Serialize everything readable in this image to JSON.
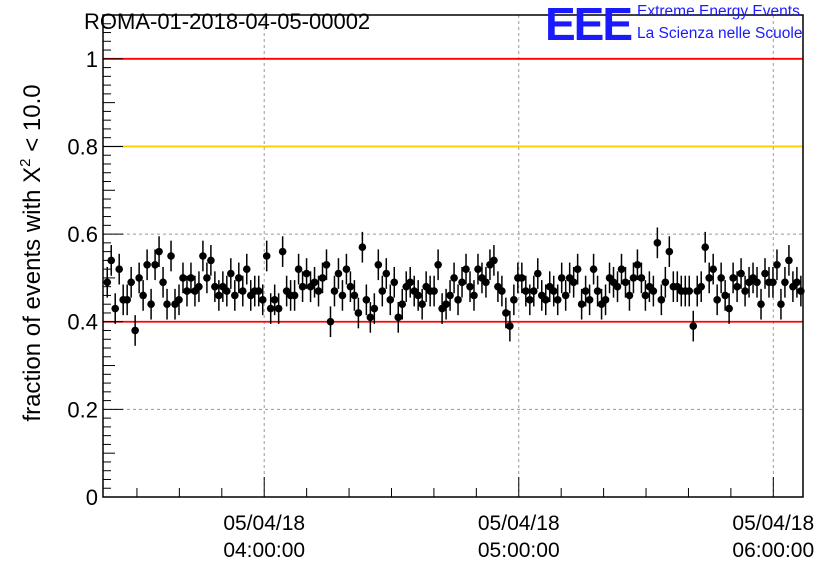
{
  "header": {
    "title": "ROMA-01-2018-04-05-00002",
    "logo_letters": "EEE",
    "logo_line1": "Extreme Energy Events",
    "logo_line2": "La Scienza nelle Scuole"
  },
  "colors": {
    "logo": "#1a1aff",
    "red_line": "#ff0000",
    "yellow_line": "#ffcc00",
    "points": "#000000"
  },
  "chart_data": {
    "type": "scatter",
    "title": "ROMA-01-2018-04-05-00002",
    "ylabel_prefix": "fraction of events with ",
    "ylabel_symbol": "X",
    "ylabel_sup": "2",
    "ylabel_suffix": " < 10.0",
    "ylim": [
      0,
      1.1
    ],
    "y_ticks": [
      0,
      0.2,
      0.4,
      0.6,
      0.8,
      1
    ],
    "y_tick_labels": [
      "0",
      "0.2",
      "0.4",
      "0.6",
      "0.8",
      "1"
    ],
    "x_range_minutes": [
      -38,
      127
    ],
    "x_major_ticks": [
      {
        "minute": 0,
        "line1": "05/04/18",
        "line2": "04:00:00"
      },
      {
        "minute": 60,
        "line1": "05/04/18",
        "line2": "05:00:00"
      },
      {
        "minute": 120,
        "line1": "05/04/18",
        "line2": "06:00:00"
      }
    ],
    "x_time_axis_start": "05/04/18 03:22:00",
    "grid": true,
    "reference_lines": [
      {
        "y": 1.0,
        "color": "#ff0000"
      },
      {
        "y": 0.8,
        "color": "#ffcc00"
      },
      {
        "y": 0.4,
        "color": "#ff0000"
      }
    ],
    "error_bar": 0.035,
    "series": [
      {
        "values": [
          0.49,
          0.54,
          0.43,
          0.52,
          0.45,
          0.45,
          0.49,
          0.38,
          0.5,
          0.46,
          0.53,
          0.44,
          0.53,
          0.56,
          0.49,
          0.44,
          0.55,
          0.44,
          0.45,
          0.5,
          0.47,
          0.5,
          0.47,
          0.48,
          0.55,
          0.5,
          0.54,
          0.48,
          0.46,
          0.48,
          0.47,
          0.51,
          0.46,
          0.5,
          0.47,
          0.52,
          0.46,
          0.47,
          0.47,
          0.45,
          0.55,
          0.43,
          0.45,
          0.43,
          0.56,
          0.47,
          0.46,
          0.46,
          0.52,
          0.48,
          0.51,
          0.48,
          0.49,
          0.47,
          0.5,
          0.53,
          0.4,
          0.47,
          0.51,
          0.46,
          0.52,
          0.48,
          0.46,
          0.42,
          0.57,
          0.45,
          0.41,
          0.43,
          0.53,
          0.47,
          0.51,
          0.45,
          0.49,
          0.41,
          0.44,
          0.48,
          0.49,
          0.47,
          0.46,
          0.44,
          0.48,
          0.47,
          0.47,
          0.53,
          0.43,
          0.44,
          0.46,
          0.5,
          0.45,
          0.49,
          0.52,
          0.48,
          0.46,
          0.52,
          0.5,
          0.49,
          0.53,
          0.54,
          0.48,
          0.47,
          0.42,
          0.39,
          0.45,
          0.5,
          0.5,
          0.47,
          0.45,
          0.47,
          0.51,
          0.46,
          0.45,
          0.48,
          0.47,
          0.45,
          0.5,
          0.46,
          0.5,
          0.49,
          0.52,
          0.44,
          0.47,
          0.45,
          0.52,
          0.47,
          0.44,
          0.45,
          0.5,
          0.49,
          0.48,
          0.52,
          0.49,
          0.46,
          0.5,
          0.53,
          0.5,
          0.46,
          0.48,
          0.47,
          0.58,
          0.45,
          0.49,
          0.56,
          0.48,
          0.48,
          0.47,
          0.47,
          0.47,
          0.39,
          0.47,
          0.48,
          0.57,
          0.5,
          0.52,
          0.45,
          0.5,
          0.46,
          0.43,
          0.5,
          0.48,
          0.51,
          0.47,
          0.49,
          0.5,
          0.49,
          0.44,
          0.51,
          0.49,
          0.49,
          0.53,
          0.44,
          0.49,
          0.54,
          0.48,
          0.49,
          0.47
        ]
      }
    ]
  }
}
